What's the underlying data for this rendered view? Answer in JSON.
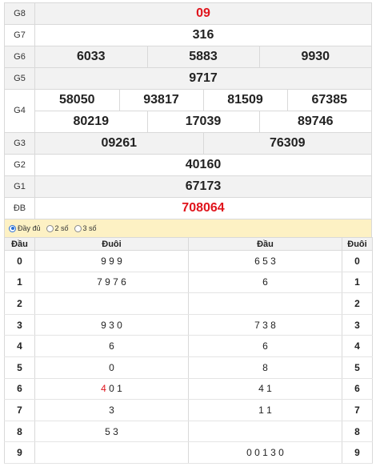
{
  "prizes": {
    "g8": {
      "label": "G8",
      "value": "09"
    },
    "g7": {
      "label": "G7",
      "value": "316"
    },
    "g6": {
      "label": "G6",
      "values": [
        "6033",
        "5883",
        "9930"
      ]
    },
    "g5": {
      "label": "G5",
      "value": "9717"
    },
    "g4": {
      "label": "G4",
      "row1": [
        "58050",
        "93817",
        "81509",
        "67385"
      ],
      "row2": [
        "80219",
        "17039",
        "89746"
      ]
    },
    "g3": {
      "label": "G3",
      "values": [
        "09261",
        "76309"
      ]
    },
    "g2": {
      "label": "G2",
      "value": "40160"
    },
    "g1": {
      "label": "G1",
      "value": "67173"
    },
    "db": {
      "label": "ĐB",
      "value": "708064"
    }
  },
  "options": {
    "full": "Đầy đủ",
    "two": "2 số",
    "three": "3 số"
  },
  "loto": {
    "headers": [
      "Đầu",
      "Đuôi",
      "Đầu",
      "Đuôi"
    ],
    "rows": [
      {
        "head": "0",
        "tail_digits": "9 9 9",
        "head_digits": "6 5 3",
        "tail": "0"
      },
      {
        "head": "1",
        "tail_digits": "7 9 7 6",
        "head_digits": "6",
        "tail": "1"
      },
      {
        "head": "2",
        "tail_digits": "",
        "head_digits": "",
        "tail": "2"
      },
      {
        "head": "3",
        "tail_digits": "9 3 0",
        "head_digits": "7 3 8",
        "tail": "3"
      },
      {
        "head": "4",
        "tail_digits": "6",
        "head_digits": "6",
        "tail": "4"
      },
      {
        "head": "5",
        "tail_digits": "0",
        "head_digits": "8",
        "tail": "5"
      },
      {
        "head": "6",
        "tail_digits": "0 1",
        "tail_red_prefix": "4",
        "head_digits": "4 1",
        "tail": "6"
      },
      {
        "head": "7",
        "tail_digits": "3",
        "head_digits": "1 1",
        "tail": "7"
      },
      {
        "head": "8",
        "tail_digits": "5 3",
        "head_digits": "",
        "tail": "8"
      },
      {
        "head": "9",
        "tail_digits": "",
        "head_digits": "0 0 1 3 0",
        "tail": "9"
      }
    ],
    "highlight_color": "#e0141c"
  }
}
